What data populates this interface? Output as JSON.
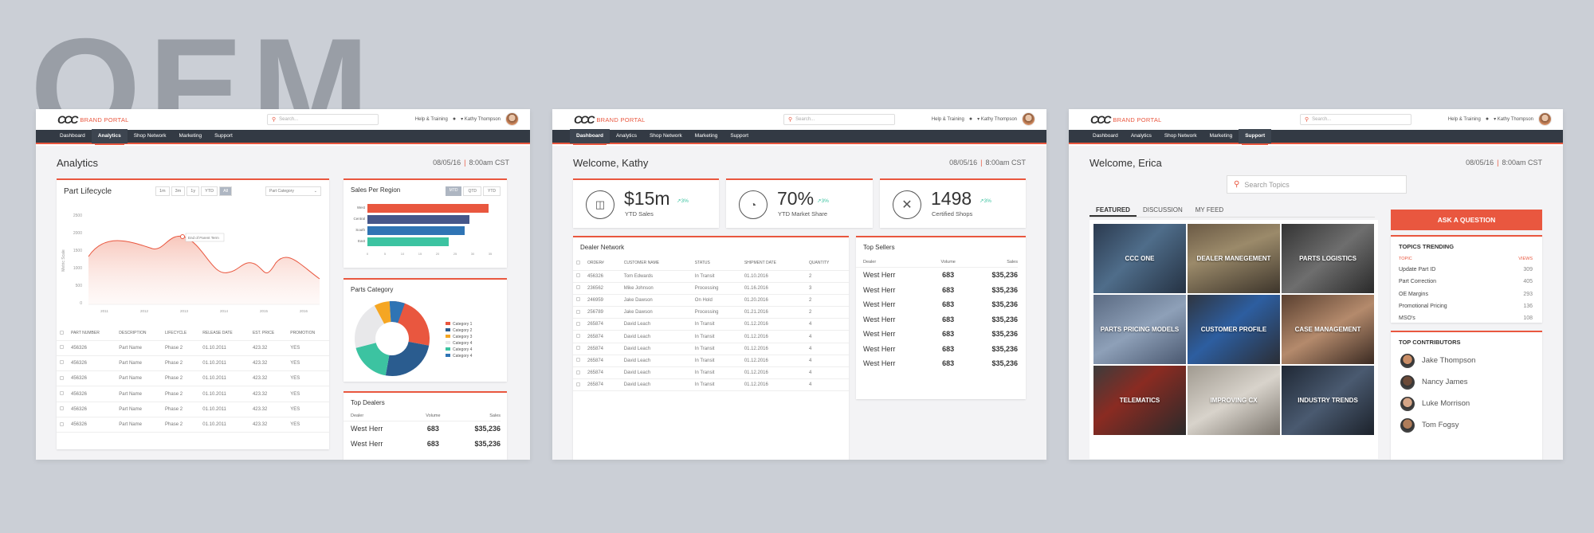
{
  "background_word": "OEM",
  "common": {
    "logo_brand": "BRAND PORTAL",
    "search_placeholder": "Search...",
    "help_label": "Help & Training",
    "user_name": "Kathy Thompson",
    "nav": [
      "Dashboard",
      "Analytics",
      "Shop Network",
      "Marketing",
      "Support"
    ],
    "date": "08/05/16",
    "time": "8:00am CST"
  },
  "colors": {
    "accent": "#e9573f",
    "nav_bg": "#333a44",
    "green": "#3cc3a1",
    "navy": "#2a5c8f"
  },
  "analytics": {
    "title": "Analytics",
    "lifecycle": {
      "title": "Part Lifecycle",
      "ranges": [
        "1m",
        "3m",
        "1y",
        "YTD",
        "All"
      ],
      "category_select": "Part Category",
      "y_label": "Metric Scale",
      "y_ticks": [
        "2500",
        "2000",
        "1500",
        "1000",
        "500",
        "0"
      ],
      "x_ticks": [
        "2011",
        "2012",
        "2013",
        "2014",
        "2015",
        "2016"
      ],
      "tooltip": "End of Parent Term",
      "columns": [
        "PART NUMBER",
        "DESCRIPTION",
        "LIFECYCLE",
        "RELEASE DATE",
        "EST. PRICE",
        "PROMOTION"
      ],
      "rows": [
        [
          "456326",
          "Part Name",
          "Phase 2",
          "01.10.2011",
          "423.32",
          "YES"
        ],
        [
          "456326",
          "Part Name",
          "Phase 2",
          "01.10.2011",
          "423.32",
          "YES"
        ],
        [
          "456326",
          "Part Name",
          "Phase 2",
          "01.10.2011",
          "423.32",
          "YES"
        ],
        [
          "456326",
          "Part Name",
          "Phase 2",
          "01.10.2011",
          "423.32",
          "YES"
        ],
        [
          "456326",
          "Part Name",
          "Phase 2",
          "01.10.2011",
          "423.32",
          "YES"
        ],
        [
          "456326",
          "Part Name",
          "Phase 2",
          "01.10.2011",
          "423.32",
          "YES"
        ]
      ]
    },
    "sales_region": {
      "title": "Sales Per Region",
      "toggles": [
        "MTD",
        "QTD",
        "YTD"
      ],
      "regions": [
        "West",
        "Central",
        "South",
        "East"
      ],
      "x_ticks": [
        "0",
        "5",
        "10",
        "15",
        "20",
        "25",
        "30",
        "35"
      ]
    },
    "parts_category": {
      "title": "Parts Category",
      "legend": [
        "Category 1",
        "Category 2",
        "Category 3",
        "Category 4",
        "Category 4",
        "Category 4"
      ]
    },
    "top_dealers": {
      "title": "Top Dealers",
      "headers": [
        "Dealer",
        "Volume",
        "Sales"
      ],
      "rows": [
        [
          "West Herr",
          "683",
          "$35,236"
        ],
        [
          "West Herr",
          "683",
          "$35,236"
        ]
      ]
    }
  },
  "dashboard": {
    "title": "Welcome, Kathy",
    "kpis": [
      {
        "value": "$15m",
        "change": "3%",
        "label": "YTD Sales"
      },
      {
        "value": "70%",
        "change": "3%",
        "label": "YTD Market Share"
      },
      {
        "value": "1498",
        "change": "3%",
        "label": "Certified Shops"
      }
    ],
    "dealer_network": {
      "title": "Dealer Network",
      "columns": [
        "ORDER#",
        "CUSTOMER NAME",
        "STATUS",
        "SHIPMENT DATE",
        "QUANTITY"
      ],
      "rows": [
        [
          "456326",
          "Tom Edwards",
          "In Transit",
          "01.10.2016",
          "2"
        ],
        [
          "236562",
          "Mike Johnson",
          "Processing",
          "01.16.2016",
          "3"
        ],
        [
          "246959",
          "Jake Dawson",
          "On Hold",
          "01.20.2016",
          "2"
        ],
        [
          "256789",
          "Jake Dawson",
          "Processing",
          "01.21.2016",
          "2"
        ],
        [
          "265874",
          "David Leach",
          "In Transit",
          "01.12.2016",
          "4"
        ],
        [
          "265874",
          "David Leach",
          "In Transit",
          "01.12.2016",
          "4"
        ],
        [
          "265874",
          "David Leach",
          "In Transit",
          "01.12.2016",
          "4"
        ],
        [
          "265874",
          "David Leach",
          "In Transit",
          "01.12.2016",
          "4"
        ],
        [
          "265874",
          "David Leach",
          "In Transit",
          "01.12.2016",
          "4"
        ],
        [
          "265874",
          "David Leach",
          "In Transit",
          "01.12.2016",
          "4"
        ]
      ]
    },
    "top_sellers": {
      "title": "Top Sellers",
      "headers": [
        "Dealer",
        "Volume",
        "Sales"
      ],
      "rows": [
        [
          "West Herr",
          "683",
          "$35,236"
        ],
        [
          "West Herr",
          "683",
          "$35,236"
        ],
        [
          "West Herr",
          "683",
          "$35,236"
        ],
        [
          "West Herr",
          "683",
          "$35,236"
        ],
        [
          "West Herr",
          "683",
          "$35,236"
        ],
        [
          "West Herr",
          "683",
          "$35,236"
        ],
        [
          "West Herr",
          "683",
          "$35,236"
        ]
      ]
    }
  },
  "support": {
    "title": "Welcome, Erica",
    "search_placeholder": "Search Topics",
    "tabs": [
      "FEATURED",
      "DISCUSSION",
      "MY FEED"
    ],
    "tiles": [
      "CCC ONE",
      "DEALER MANEGEMENT",
      "PARTS LOGISTICS",
      "PARTS PRICING MODELS",
      "CUSTOMER PROFILE",
      "CASE MANAGEMENT",
      "TELEMATICS",
      "IMPROVING CX",
      "INDUSTRY TRENDS"
    ],
    "ask_button": "ASK A QUESTION",
    "trending": {
      "title": "TOPICS TRENDING",
      "col_topic": "TOPIC",
      "col_views": "VIEWS",
      "rows": [
        [
          "Update Part ID",
          "309"
        ],
        [
          "Part Correction",
          "405"
        ],
        [
          "OE Margins",
          "293"
        ],
        [
          "Promotional Pricing",
          "136"
        ],
        [
          "MSO's",
          "108"
        ]
      ]
    },
    "contributors": {
      "title": "TOP CONTRIBUTORS",
      "names": [
        "Jake Thompson",
        "Nancy James",
        "Luke Morrison",
        "Tom Fogsy"
      ]
    }
  }
}
